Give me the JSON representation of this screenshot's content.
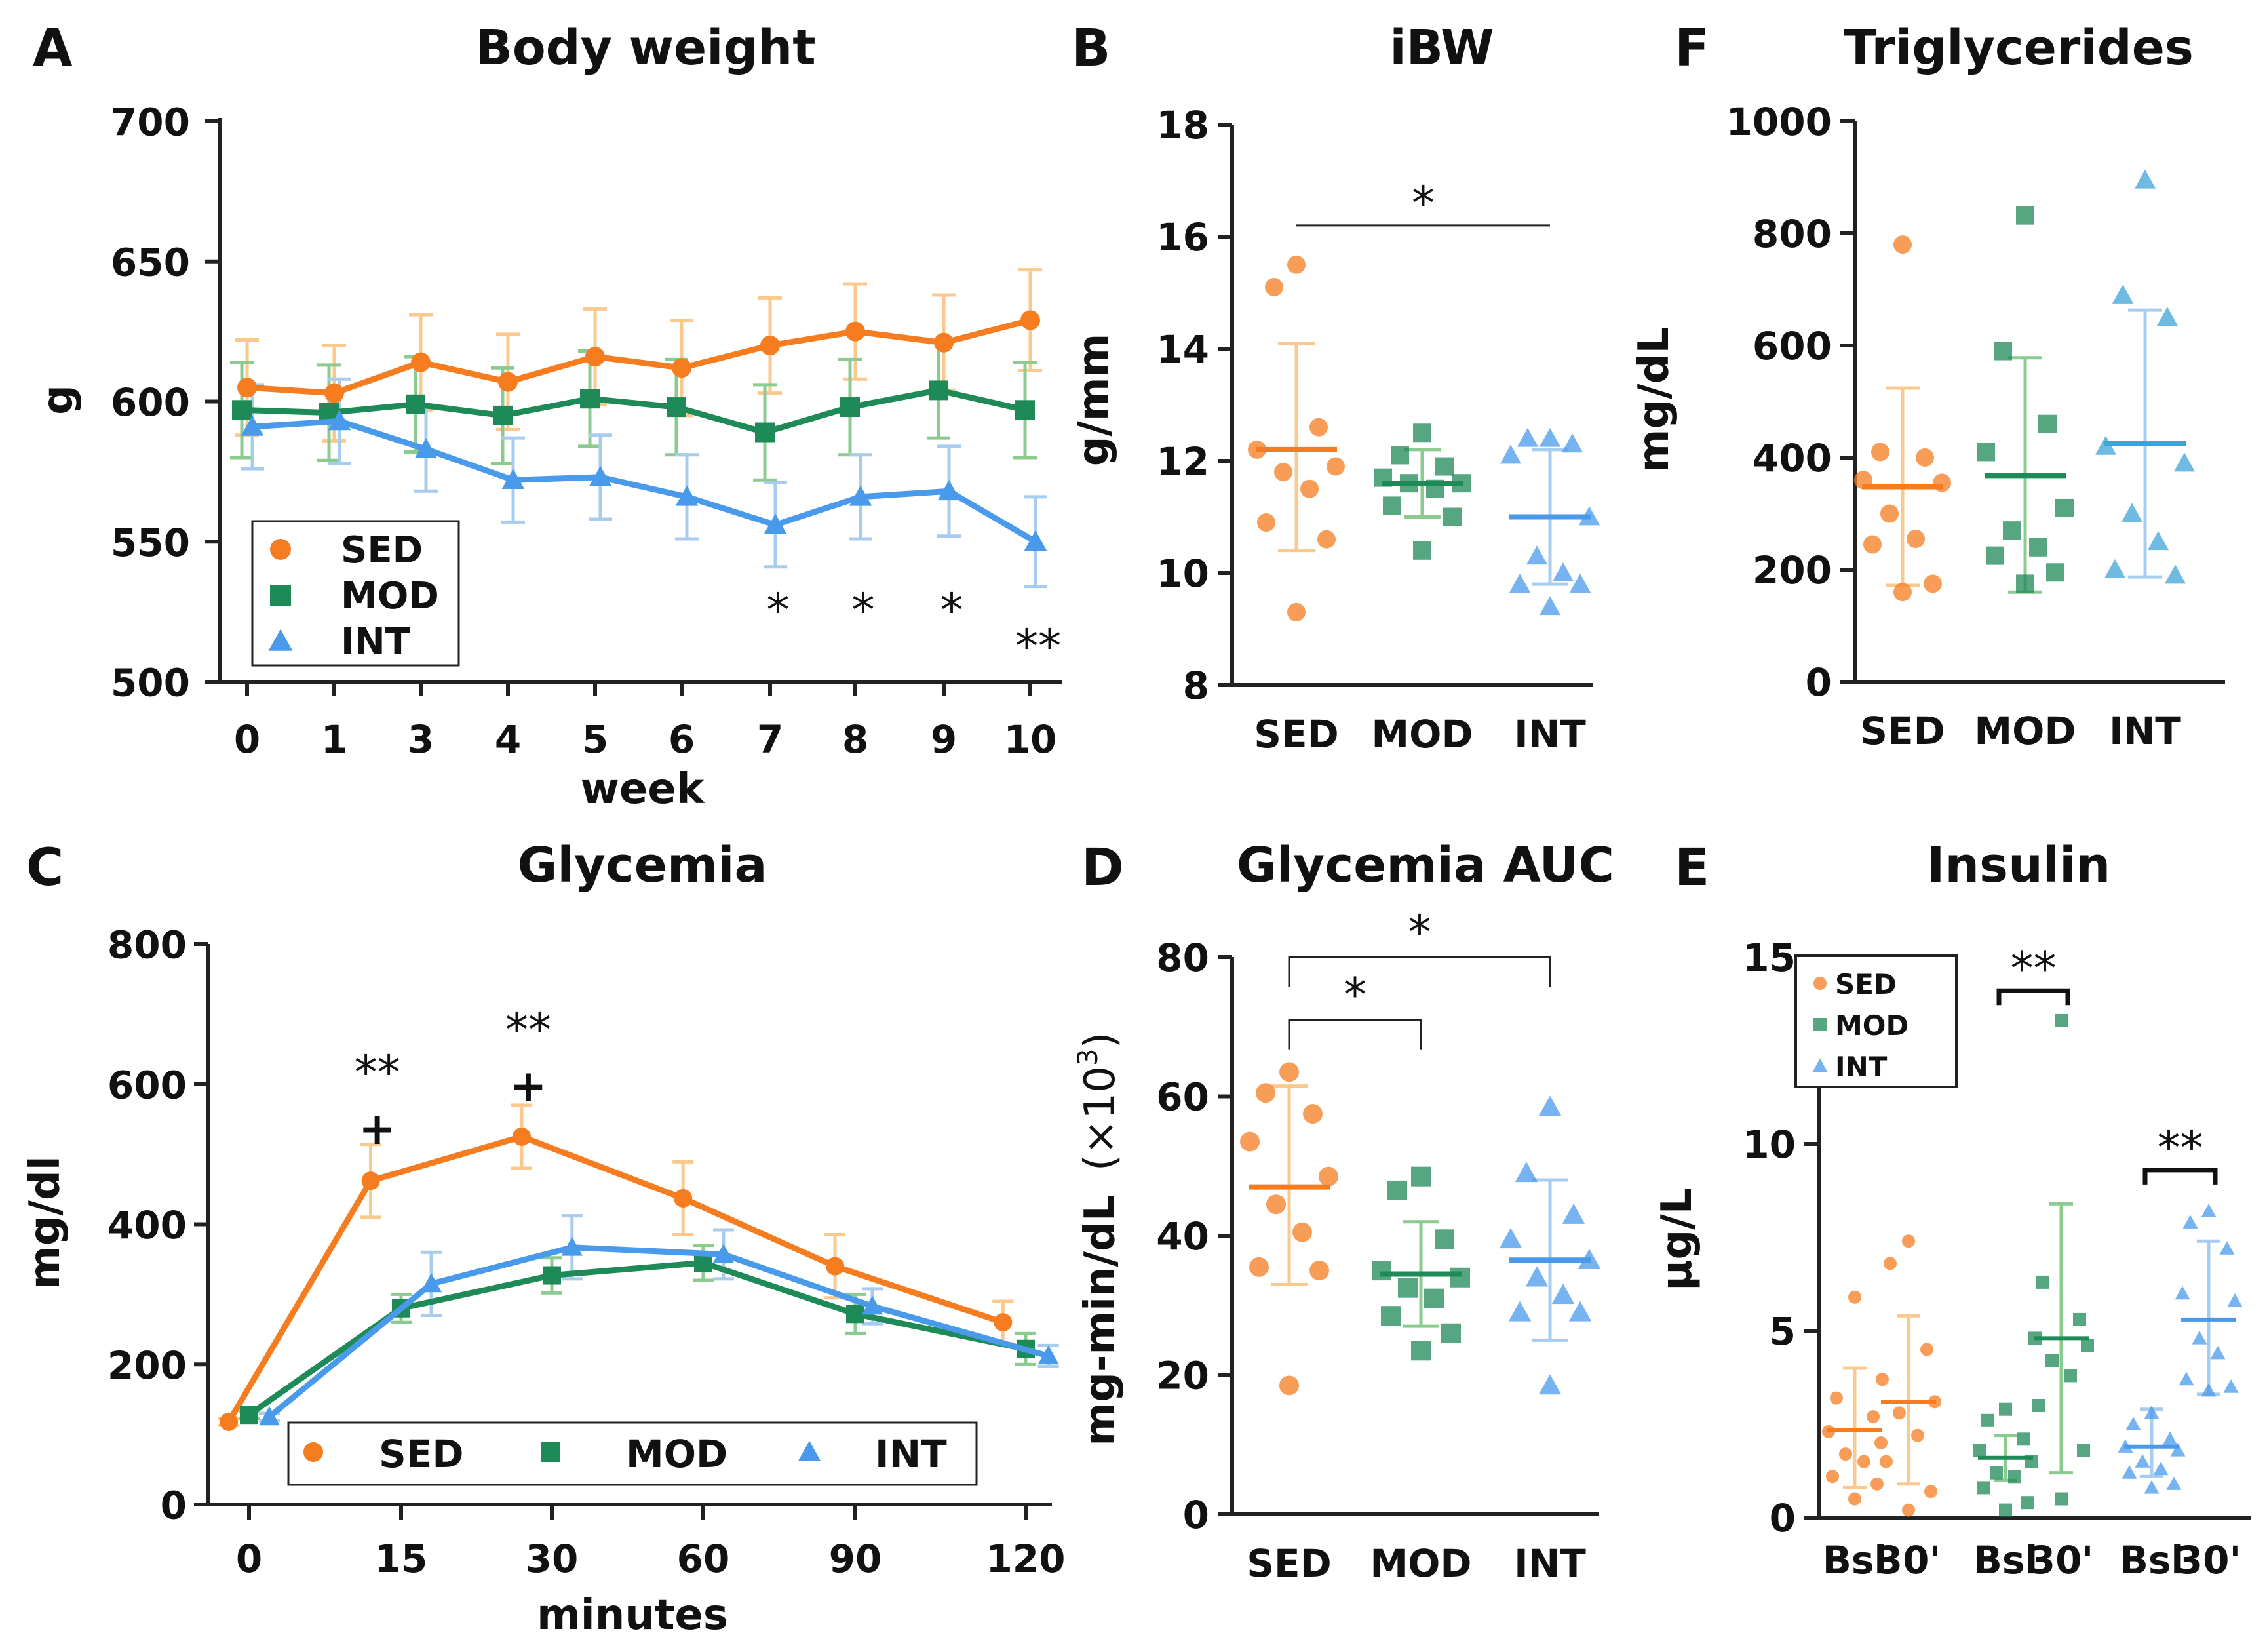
{
  "colors": {
    "SED": "#F57C1F",
    "MOD": "#1E8A57",
    "INT": "#4A9AEB",
    "SED_light": "#FBC98E",
    "MOD_light": "#8CCB90",
    "INT_light": "#A8CCEE",
    "TG_INT": "#3FA3D6"
  },
  "chart_data": [
    {
      "id": "A",
      "letter": "A",
      "type": "line",
      "title": "Body weight",
      "xlabel": "week",
      "ylabel": "g",
      "categories": [
        "0",
        "1",
        "3",
        "4",
        "5",
        "6",
        "7",
        "8",
        "9",
        "10"
      ],
      "yticks": [
        500,
        550,
        600,
        650,
        700
      ],
      "ylim": [
        500,
        700
      ],
      "series": [
        {
          "name": "SED",
          "values": [
            605,
            603,
            614,
            607,
            616,
            612,
            620,
            625,
            621,
            629
          ],
          "err": [
            17,
            17,
            17,
            17,
            17,
            17,
            17,
            17,
            17,
            18
          ]
        },
        {
          "name": "MOD",
          "values": [
            597,
            596,
            599,
            595,
            601,
            598,
            589,
            598,
            604,
            597
          ],
          "err": [
            17,
            17,
            17,
            17,
            17,
            17,
            17,
            17,
            17,
            17
          ]
        },
        {
          "name": "INT",
          "values": [
            591,
            593,
            583,
            572,
            573,
            566,
            556,
            566,
            568,
            550
          ],
          "err": [
            15,
            15,
            15,
            15,
            15,
            15,
            15,
            15,
            16,
            16
          ]
        }
      ],
      "annotations": [
        {
          "category": "7",
          "text": "*"
        },
        {
          "category": "8",
          "text": "*"
        },
        {
          "category": "9",
          "text": "*"
        },
        {
          "category": "10",
          "text": "**"
        }
      ],
      "legend": {
        "position": "bottom-left",
        "entries": [
          "SED",
          "MOD",
          "INT"
        ]
      }
    },
    {
      "id": "B",
      "letter": "B",
      "type": "scatter",
      "title": "iBW",
      "ylabel": "g/mm",
      "categories": [
        "SED",
        "MOD",
        "INT"
      ],
      "yticks": [
        8,
        10,
        12,
        14,
        16,
        18
      ],
      "ylim": [
        8,
        18
      ],
      "groups": [
        {
          "name": "SED",
          "points": [
            15.5,
            15.1,
            12.6,
            12.2,
            11.9,
            11.8,
            11.5,
            10.9,
            10.6,
            9.3
          ],
          "mean": 12.2,
          "sd_low": 10.4,
          "sd_high": 14.1
        },
        {
          "name": "MOD",
          "points": [
            12.5,
            12.1,
            11.9,
            11.7,
            11.6,
            11.6,
            11.5,
            11.2,
            11.0,
            10.4
          ],
          "mean": 11.6,
          "sd_low": 11.0,
          "sd_high": 12.2
        },
        {
          "name": "INT",
          "points": [
            12.4,
            12.4,
            12.3,
            12.1,
            11.0,
            10.3,
            10.0,
            9.8,
            9.8,
            9.4
          ],
          "mean": 11.0,
          "sd_low": 9.8,
          "sd_high": 12.2
        }
      ],
      "brackets": [
        {
          "from": "SED",
          "to": "INT",
          "y": 16.2,
          "text": "*"
        }
      ]
    },
    {
      "id": "F",
      "letter": "F",
      "type": "scatter",
      "title": "Triglycerides",
      "ylabel": "mg/dL",
      "categories": [
        "SED",
        "MOD",
        "INT"
      ],
      "yticks": [
        0,
        200,
        400,
        600,
        800,
        1000
      ],
      "ylim": [
        0,
        1000
      ],
      "groups": [
        {
          "name": "SED",
          "points": [
            780,
            410,
            400,
            360,
            355,
            300,
            255,
            245,
            175,
            160
          ],
          "mean": 348,
          "sd_low": 172,
          "sd_high": 524
        },
        {
          "name": "MOD",
          "points": [
            832,
            590,
            460,
            410,
            310,
            270,
            240,
            225,
            195,
            175
          ],
          "mean": 368,
          "sd_low": 160,
          "sd_high": 578
        },
        {
          "name": "INT",
          "points": [
            895,
            690,
            650,
            420,
            390,
            300,
            250,
            200,
            190
          ],
          "mean": 425,
          "sd_low": 187,
          "sd_high": 663
        }
      ]
    },
    {
      "id": "C",
      "letter": "C",
      "type": "line",
      "title": "Glycemia",
      "xlabel": "minutes",
      "ylabel": "mg/dl",
      "xticks": [
        0,
        15,
        30,
        60,
        90,
        120
      ],
      "yticks": [
        0,
        200,
        400,
        600,
        800
      ],
      "ylim": [
        0,
        800
      ],
      "series": [
        {
          "name": "SED",
          "x": [
            -2,
            12,
            27,
            56,
            86,
            116
          ],
          "values": [
            118,
            462,
            525,
            437,
            340,
            260
          ],
          "err": [
            5,
            52,
            45,
            52,
            45,
            30
          ]
        },
        {
          "name": "MOD",
          "x": [
            0,
            15,
            30,
            60,
            90,
            120
          ],
          "values": [
            128,
            280,
            327,
            345,
            272,
            222
          ],
          "err": [
            5,
            20,
            25,
            25,
            28,
            22
          ]
        },
        {
          "name": "INT",
          "x": [
            2,
            18,
            34,
            64,
            93,
            124
          ],
          "values": [
            125,
            315,
            367,
            357,
            283,
            212
          ],
          "err": [
            5,
            45,
            45,
            35,
            25,
            15
          ]
        }
      ],
      "annotations": [
        {
          "x": 12,
          "text": "**",
          "sub": "+"
        },
        {
          "x": 27,
          "text": "**",
          "sub": "+"
        }
      ],
      "legend": {
        "position": "bottom",
        "entries": [
          "SED",
          "MOD",
          "INT"
        ]
      }
    },
    {
      "id": "D",
      "letter": "D",
      "type": "scatter",
      "title": "Glycemia AUC",
      "ylabel_main": "mg-min/dL",
      "ylabel_unit": "(×10",
      "ylabel_exp": "3",
      "ylabel_close": ")",
      "categories": [
        "SED",
        "MOD",
        "INT"
      ],
      "yticks": [
        0,
        20,
        40,
        60,
        80
      ],
      "ylim": [
        0,
        80
      ],
      "groups": [
        {
          "name": "SED",
          "points": [
            63.5,
            60.5,
            57.5,
            53.5,
            48.5,
            44.5,
            40.5,
            35.5,
            35.0,
            18.5
          ],
          "mean": 47,
          "sd_low": 33,
          "sd_high": 61.5
        },
        {
          "name": "MOD",
          "points": [
            48.5,
            46.5,
            39.5,
            35.0,
            34.0,
            32.5,
            31.0,
            28.5,
            26.0,
            23.5
          ],
          "mean": 34.5,
          "sd_low": 27,
          "sd_high": 42
        },
        {
          "name": "INT",
          "points": [
            58.5,
            49.0,
            43.0,
            39.5,
            36.5,
            34.0,
            31.5,
            29.0,
            29.0,
            18.5
          ],
          "mean": 36.5,
          "sd_low": 25,
          "sd_high": 48
        }
      ],
      "brackets": [
        {
          "from": "SED",
          "to": "MOD",
          "y": 71,
          "text": "*"
        },
        {
          "from": "SED",
          "to": "INT",
          "y": 80,
          "text": "*"
        }
      ]
    },
    {
      "id": "E",
      "letter": "E",
      "type": "scatter",
      "title": "Insulin",
      "ylabel": "μg/L",
      "categories": [
        "Bsl",
        "30'",
        "Bsl",
        "30'",
        "Bsl",
        "30'"
      ],
      "yticks": [
        0,
        5,
        10,
        15
      ],
      "ylim": [
        0,
        15
      ],
      "groups": [
        {
          "name": "SED",
          "points": [
            5.9,
            3.2,
            2.7,
            2.3,
            2.0,
            1.7,
            1.5,
            1.1,
            0.9,
            0.5
          ],
          "mean": 2.35,
          "sd_low": 0.8,
          "sd_high": 4.0
        },
        {
          "name": "SED",
          "points": [
            7.4,
            6.8,
            4.5,
            3.7,
            3.1,
            2.8,
            2.2,
            1.5,
            0.7,
            0.2
          ],
          "mean": 3.1,
          "sd_low": 0.9,
          "sd_high": 5.4
        },
        {
          "name": "MOD",
          "points": [
            2.9,
            2.6,
            2.1,
            1.8,
            1.5,
            1.2,
            1.1,
            0.8,
            0.4,
            0.2
          ],
          "mean": 1.6,
          "sd_low": 1.0,
          "sd_high": 2.2
        },
        {
          "name": "MOD",
          "points": [
            13.3,
            6.3,
            5.3,
            4.8,
            4.6,
            4.2,
            3.8,
            3.0,
            1.8,
            0.5
          ],
          "mean": 4.8,
          "sd_low": 1.2,
          "sd_high": 8.4
        },
        {
          "name": "INT",
          "points": [
            2.8,
            2.5,
            2.1,
            1.9,
            1.8,
            1.5,
            1.3,
            1.2,
            0.9,
            0.8
          ],
          "mean": 1.9,
          "sd_low": 1.1,
          "sd_high": 2.9
        },
        {
          "name": "INT",
          "points": [
            8.2,
            7.9,
            7.2,
            6.0,
            5.8,
            4.8,
            4.4,
            3.7,
            3.5,
            3.4
          ],
          "mean": 5.3,
          "sd_low": 3.3,
          "sd_high": 7.4
        }
      ],
      "brackets": [
        {
          "from": 2,
          "to": 3,
          "y": 14.1,
          "text": "**"
        },
        {
          "from": 4,
          "to": 5,
          "y": 9.3,
          "text": "**"
        }
      ],
      "legend": {
        "position": "top-left",
        "entries": [
          "SED",
          "MOD",
          "INT"
        ]
      }
    }
  ]
}
